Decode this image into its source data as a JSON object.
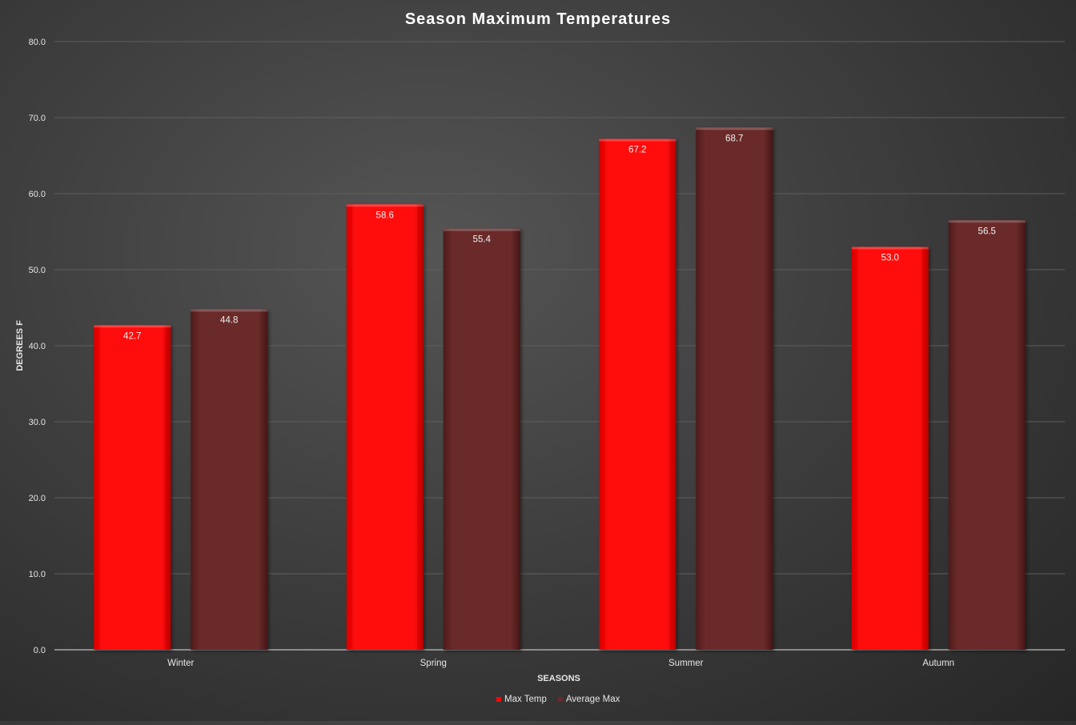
{
  "chart_data": {
    "type": "bar",
    "title": "Season Maximum Temperatures",
    "xlabel": "SEASONS",
    "ylabel": "DEGREES F",
    "categories": [
      "Winter",
      "Spring",
      "Summer",
      "Autumn"
    ],
    "series": [
      {
        "name": "Max Temp",
        "values": [
          42.7,
          58.6,
          67.2,
          53.0
        ],
        "color": "#ff0505"
      },
      {
        "name": "Average Max",
        "values": [
          44.8,
          55.4,
          68.7,
          56.5
        ],
        "color": "#6b2a2a"
      }
    ],
    "ylim": [
      0,
      80
    ],
    "yticks": [
      0,
      10,
      20,
      30,
      40,
      50,
      60,
      70,
      80
    ],
    "tick_decimals": 1,
    "grid": true,
    "legend_position": "bottom",
    "data_labels": true
  }
}
